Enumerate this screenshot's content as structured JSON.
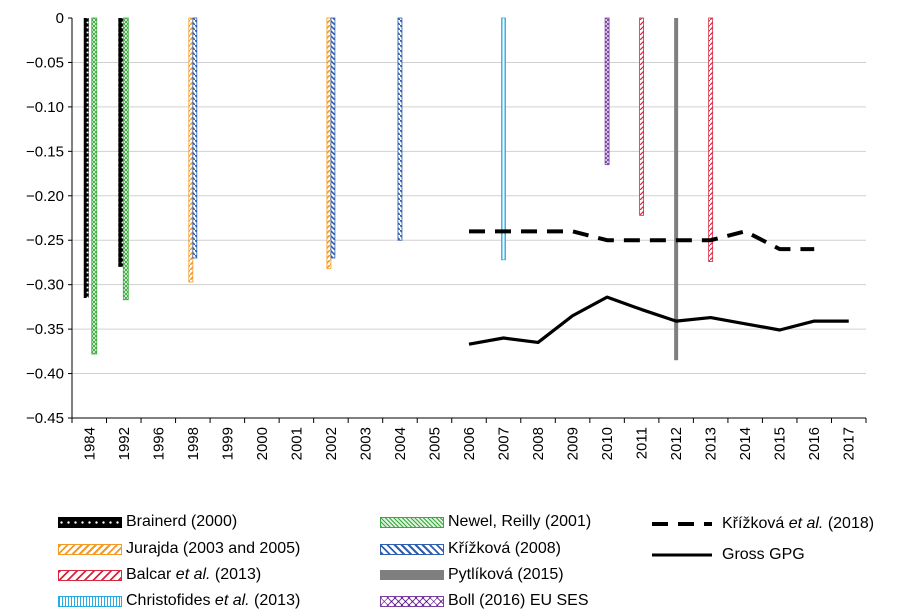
{
  "chart_data": {
    "type": "bar",
    "categories": [
      "1984",
      "1992",
      "1996",
      "1998",
      "1999",
      "2000",
      "2001",
      "2002",
      "2003",
      "2004",
      "2005",
      "2006",
      "2007",
      "2008",
      "2009",
      "2010",
      "2011",
      "2012",
      "2013",
      "2014",
      "2015",
      "2016",
      "2017"
    ],
    "ylim": [
      -0.45,
      0
    ],
    "yticks": [
      "0",
      "−0.05",
      "−0.10",
      "−0.15",
      "−0.20",
      "−0.25",
      "−0.30",
      "−0.35",
      "−0.40",
      "−0.45"
    ],
    "grid": true,
    "legend_position": "bottom",
    "bar_series": [
      {
        "key": "brainerd",
        "name": "Brainerd (2000)",
        "color": "#000000",
        "pattern": "dots",
        "values": {
          "1984": -0.315,
          "1992": -0.28
        }
      },
      {
        "key": "newel",
        "name": "Newel, Reilly (2001)",
        "color": "#3aaa3c",
        "pattern": "cross",
        "values": {
          "1984": -0.378,
          "1992": -0.317
        }
      },
      {
        "key": "jurajda",
        "name": "Jurajda (2003 and 2005)",
        "color": "#f59a23",
        "pattern": "diag",
        "values": {
          "1998": -0.297,
          "2002": -0.282
        }
      },
      {
        "key": "krizkova2008",
        "name": "Křížková (2008)",
        "color": "#2f5fb0",
        "pattern": "diag",
        "values": {
          "1998": -0.27,
          "2002": -0.27,
          "2004": -0.25
        }
      },
      {
        "key": "balcar",
        "name": "Balcar et al. (2013)",
        "color": "#d7263d",
        "pattern": "diag",
        "values": {
          "2011": -0.222,
          "2013": -0.274
        }
      },
      {
        "key": "pytlikova",
        "name": "Pytlíková (2015)",
        "color": "#7f7f7f",
        "pattern": "solid",
        "values": {
          "2012": -0.385
        }
      },
      {
        "key": "christofides",
        "name": "Christofides et al. (2013)",
        "color": "#29abe2",
        "pattern": "vlines",
        "values": {
          "2007": -0.272
        }
      },
      {
        "key": "boll",
        "name": "Boll (2016) EU SES",
        "color": "#7a3fa0",
        "pattern": "cross",
        "values": {
          "2010": -0.165
        }
      }
    ],
    "line_series": [
      {
        "key": "krizkova2018",
        "name": "Křížková et al. (2018)",
        "dash": true,
        "x": [
          "2006",
          "2007",
          "2008",
          "2009",
          "2010",
          "2011",
          "2012",
          "2013",
          "2014",
          "2015",
          "2016"
        ],
        "y": [
          -0.24,
          -0.24,
          -0.24,
          -0.24,
          -0.25,
          -0.25,
          -0.25,
          -0.25,
          -0.24,
          -0.26,
          -0.26
        ]
      },
      {
        "key": "gross",
        "name": "Gross GPG",
        "dash": false,
        "x": [
          "2006",
          "2007",
          "2008",
          "2009",
          "2010",
          "2011",
          "2012",
          "2013",
          "2014",
          "2015",
          "2016",
          "2017"
        ],
        "y": [
          -0.367,
          -0.36,
          -0.365,
          -0.335,
          -0.314,
          -0.328,
          -0.341,
          -0.337,
          -0.344,
          -0.351,
          -0.341,
          -0.341
        ]
      }
    ]
  },
  "legend": {
    "brainerd": {
      "text": "Brainerd (2000)",
      "italic": ""
    },
    "newel": {
      "text": "Newel, Reilly (2001)",
      "italic": ""
    },
    "jurajda": {
      "text": "Jurajda (2003 and 2005)",
      "italic": ""
    },
    "krizkova2008": {
      "text": "Křížková (2008)",
      "italic": ""
    },
    "balcar": {
      "pre": "Balcar ",
      "italic": "et al.",
      "post": " (2013)"
    },
    "pytlikova": {
      "text": "Pytlíková (2015)",
      "italic": ""
    },
    "christofides": {
      "pre": "Christofides ",
      "italic": "et al.",
      "post": " (2013)"
    },
    "boll": {
      "text": "Boll (2016) EU SES",
      "italic": ""
    },
    "krizkova2018": {
      "pre": "Křížková ",
      "italic": "et al.",
      "post": " (2018)"
    },
    "gross": {
      "text": "Gross GPG",
      "italic": ""
    }
  }
}
